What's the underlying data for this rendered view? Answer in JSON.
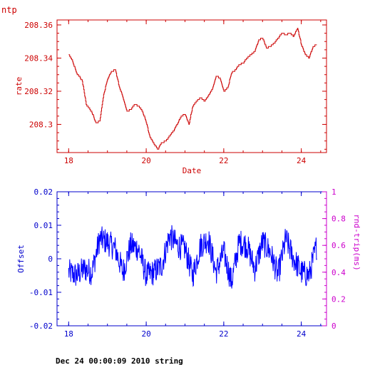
{
  "footer": {
    "text": "Dec 24 00:00:09 2010 string"
  },
  "colors": {
    "top": "#cc0000",
    "bottom_left": "#0000cc",
    "bottom_right": "#cc00cc",
    "trace": "#0000ff"
  },
  "chart_data": [
    {
      "type": "line",
      "title": "ntp",
      "xlabel": "Date",
      "ylabel": "rate",
      "xlim": [
        17.7,
        24.65
      ],
      "ylim": [
        208.283,
        208.363
      ],
      "xticks": [
        18,
        20,
        22,
        24
      ],
      "yticks": [
        208.3,
        208.32,
        208.34,
        208.36
      ],
      "ytick_labels": [
        "208.3",
        "208.32",
        "208.34",
        "208.36"
      ],
      "series": [
        {
          "x": [
            18.0,
            18.1,
            18.2,
            18.35,
            18.45,
            18.6,
            18.7,
            18.8,
            18.9,
            19.0,
            19.1,
            19.2,
            19.3,
            19.4,
            19.5,
            19.6,
            19.7,
            19.8,
            19.9,
            20.0,
            20.1,
            20.2,
            20.3,
            20.4,
            20.5,
            20.6,
            20.7,
            20.8,
            20.9,
            21.0,
            21.1,
            21.2,
            21.3,
            21.4,
            21.5,
            21.6,
            21.7,
            21.8,
            21.9,
            22.0,
            22.1,
            22.2,
            22.3,
            22.4,
            22.5,
            22.6,
            22.7,
            22.8,
            22.9,
            23.0,
            23.1,
            23.2,
            23.3,
            23.4,
            23.5,
            23.6,
            23.7,
            23.8,
            23.9,
            24.0,
            24.1,
            24.2,
            24.3,
            24.4
          ],
          "values": [
            208.342,
            208.338,
            208.331,
            208.326,
            208.312,
            208.307,
            208.301,
            208.302,
            208.318,
            208.327,
            208.332,
            208.333,
            208.323,
            208.316,
            208.308,
            208.309,
            208.312,
            208.311,
            208.308,
            208.301,
            208.292,
            208.288,
            208.285,
            208.289,
            208.29,
            208.293,
            208.296,
            208.3,
            208.305,
            208.306,
            208.3,
            208.311,
            208.314,
            208.316,
            208.314,
            208.317,
            208.321,
            208.329,
            208.328,
            208.32,
            208.322,
            208.331,
            208.333,
            208.336,
            208.337,
            208.34,
            208.342,
            208.344,
            208.351,
            208.352,
            208.346,
            208.347,
            208.349,
            208.352,
            208.355,
            208.354,
            208.355,
            208.353,
            208.358,
            208.348,
            208.342,
            208.34,
            208.347,
            208.348
          ]
        }
      ]
    },
    {
      "type": "line",
      "xlabel": "",
      "ylabel": "Offset",
      "ylabel_right": "rnd-trip(ms)",
      "xlim": [
        17.7,
        24.65
      ],
      "ylim": [
        -0.02,
        0.02
      ],
      "ylim_right": [
        0,
        1
      ],
      "xticks": [
        18,
        20,
        22,
        24
      ],
      "yticks": [
        -0.02,
        -0.01,
        0,
        0.01,
        0.02
      ],
      "ytick_labels": [
        "-0.02",
        "-0.01",
        "0",
        "0.01",
        "0.02"
      ],
      "yticks_right": [
        0,
        0.2,
        0.4,
        0.6,
        0.8,
        1
      ],
      "ytick_labels_right": [
        "0",
        "0.2",
        "0.4",
        "0.6",
        "0.8",
        "1"
      ],
      "series": [
        {
          "x": [
            18.0,
            18.2,
            18.4,
            18.6,
            18.8,
            19.0,
            19.2,
            19.4,
            19.6,
            19.8,
            20.0,
            20.2,
            20.4,
            20.6,
            20.8,
            21.0,
            21.2,
            21.4,
            21.6,
            21.8,
            22.0,
            22.2,
            22.4,
            22.6,
            22.8,
            23.0,
            23.2,
            23.4,
            23.6,
            23.8,
            24.0,
            24.2,
            24.4
          ],
          "values": [
            -0.004,
            -0.005,
            -0.003,
            -0.004,
            0.006,
            0.005,
            0.003,
            -0.004,
            0.004,
            0.003,
            -0.005,
            -0.004,
            -0.002,
            0.007,
            0.004,
            0.003,
            -0.005,
            0.004,
            0.006,
            -0.004,
            0.002,
            -0.007,
            0.005,
            0.004,
            -0.003,
            0.005,
            0.002,
            -0.005,
            0.006,
            0.0,
            -0.004,
            -0.005,
            0.004
          ]
        }
      ]
    }
  ]
}
